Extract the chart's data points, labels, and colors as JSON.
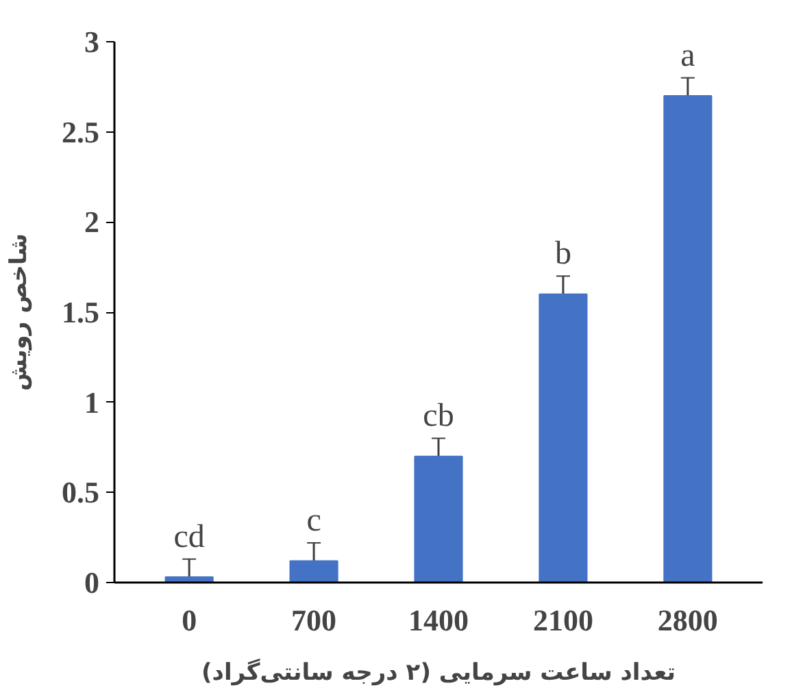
{
  "chart_data": {
    "type": "bar",
    "xlabel": "تعداد ساعت سرمایی (۲ درجه سانتی‌گراد)",
    "ylabel": "شاخص رویش",
    "categories": [
      "0",
      "700",
      "1400",
      "2100",
      "2800"
    ],
    "values": [
      0.03,
      0.12,
      0.7,
      1.6,
      2.7
    ],
    "errors": [
      0.1,
      0.1,
      0.1,
      0.1,
      0.1
    ],
    "color": "#4472c4",
    "ylim": [
      0,
      3
    ],
    "yticks": [
      0,
      0.5,
      1,
      1.5,
      2,
      2.5,
      3
    ],
    "grid": false,
    "annotations": [
      {
        "text": "cd",
        "x": "0",
        "y": 0.13
      },
      {
        "text": "c",
        "x": "700",
        "y": 0.22
      },
      {
        "text": "cb",
        "x": "1400",
        "y": 0.8
      },
      {
        "text": "b",
        "x": "2100",
        "y": 1.7
      },
      {
        "text": "a",
        "x": "2800",
        "y": 2.8
      }
    ]
  }
}
